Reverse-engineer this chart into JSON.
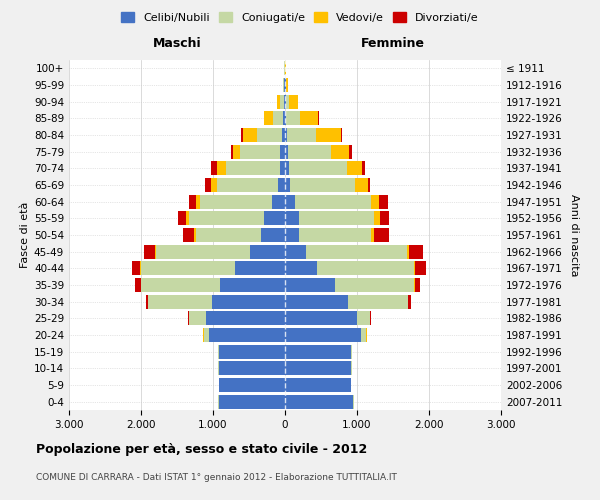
{
  "age_groups": [
    "0-4",
    "5-9",
    "10-14",
    "15-19",
    "20-24",
    "25-29",
    "30-34",
    "35-39",
    "40-44",
    "45-49",
    "50-54",
    "55-59",
    "60-64",
    "65-69",
    "70-74",
    "75-79",
    "80-84",
    "85-89",
    "90-94",
    "95-99",
    "100+"
  ],
  "birth_years": [
    "2007-2011",
    "2002-2006",
    "1997-2001",
    "1992-1996",
    "1987-1991",
    "1982-1986",
    "1977-1981",
    "1972-1976",
    "1967-1971",
    "1962-1966",
    "1957-1961",
    "1952-1956",
    "1947-1951",
    "1942-1946",
    "1937-1941",
    "1932-1936",
    "1927-1931",
    "1922-1926",
    "1917-1921",
    "1912-1916",
    "≤ 1911"
  ],
  "colors": {
    "celibi": "#4472c4",
    "coniugati": "#c5d8a4",
    "vedovi": "#ffc000",
    "divorziati": "#cc0000"
  },
  "maschi": {
    "celibi": [
      920,
      910,
      920,
      910,
      1050,
      1100,
      1020,
      900,
      700,
      490,
      340,
      290,
      180,
      95,
      75,
      70,
      40,
      25,
      15,
      8,
      4
    ],
    "coniugati": [
      5,
      5,
      10,
      20,
      80,
      230,
      880,
      1100,
      1300,
      1300,
      900,
      1050,
      1000,
      850,
      750,
      550,
      350,
      140,
      50,
      15,
      5
    ],
    "vedovi": [
      0,
      0,
      0,
      0,
      5,
      5,
      5,
      5,
      10,
      20,
      30,
      40,
      60,
      80,
      120,
      100,
      200,
      120,
      40,
      10,
      2
    ],
    "divorziati": [
      0,
      0,
      0,
      0,
      5,
      10,
      30,
      80,
      120,
      150,
      150,
      100,
      100,
      80,
      80,
      30,
      20,
      10,
      5,
      0,
      0
    ]
  },
  "femmine": {
    "celibi": [
      950,
      910,
      920,
      910,
      1050,
      1000,
      880,
      690,
      440,
      290,
      190,
      190,
      140,
      75,
      55,
      45,
      25,
      15,
      10,
      8,
      4
    ],
    "coniugati": [
      5,
      5,
      10,
      20,
      80,
      180,
      830,
      1100,
      1350,
      1400,
      1000,
      1050,
      1050,
      900,
      800,
      600,
      400,
      190,
      50,
      10,
      2
    ],
    "vedovi": [
      0,
      0,
      0,
      0,
      5,
      5,
      5,
      10,
      20,
      30,
      50,
      80,
      120,
      180,
      220,
      250,
      350,
      250,
      120,
      30,
      5
    ],
    "divorziati": [
      0,
      0,
      0,
      0,
      5,
      10,
      30,
      80,
      150,
      200,
      200,
      130,
      120,
      30,
      30,
      40,
      20,
      15,
      5,
      0,
      0
    ]
  },
  "title": "Popolazione per età, sesso e stato civile - 2012",
  "subtitle": "COMUNE DI CARRARA - Dati ISTAT 1° gennaio 2012 - Elaborazione TUTTITALIA.IT",
  "xlabel_left": "Maschi",
  "xlabel_right": "Femmine",
  "ylabel_left": "Fasce di età",
  "ylabel_right": "Anni di nascita",
  "xlim": 3000,
  "background_color": "#f0f0f0",
  "plot_background": "#ffffff",
  "legend_labels": [
    "Celibi/Nubili",
    "Coniugati/e",
    "Vedovi/e",
    "Divorziati/e"
  ]
}
